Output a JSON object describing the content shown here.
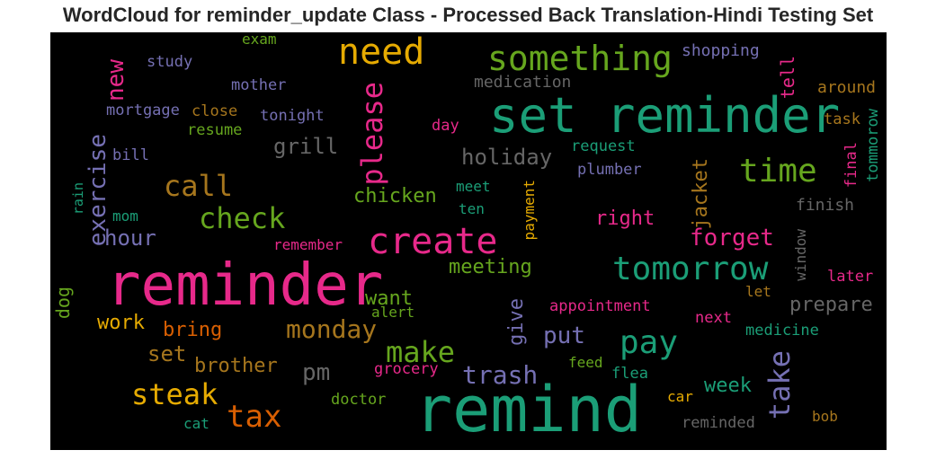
{
  "title": "WordCloud for reminder_update Class - Processed Back Translation-Hindi Testing Set",
  "colors": {
    "pink": "#e7298a",
    "teal": "#1b9e77",
    "orange": "#d95f02",
    "purple": "#7570b3",
    "green": "#66a61e",
    "gold": "#e6ab02",
    "brown": "#a6761d",
    "gray": "#666666"
  },
  "chart_data": {
    "type": "wordcloud",
    "background": "#000000",
    "words": [
      {
        "text": "reminder",
        "color": "pink"
      },
      {
        "text": "remind",
        "color": "teal"
      },
      {
        "text": "set reminder",
        "color": "teal"
      },
      {
        "text": "create",
        "color": "pink"
      },
      {
        "text": "tomorrow",
        "color": "teal"
      },
      {
        "text": "something",
        "color": "green"
      },
      {
        "text": "need",
        "color": "gold"
      },
      {
        "text": "please",
        "color": "pink"
      },
      {
        "text": "time",
        "color": "green"
      },
      {
        "text": "pay",
        "color": "teal"
      },
      {
        "text": "call",
        "color": "brown"
      },
      {
        "text": "check",
        "color": "green"
      },
      {
        "text": "make",
        "color": "green"
      },
      {
        "text": "tax",
        "color": "orange"
      },
      {
        "text": "steak",
        "color": "gold"
      },
      {
        "text": "take",
        "color": "purple"
      },
      {
        "text": "exercise",
        "color": "purple"
      },
      {
        "text": "new",
        "color": "pink"
      },
      {
        "text": "monday",
        "color": "brown"
      },
      {
        "text": "forget",
        "color": "pink"
      },
      {
        "text": "trash",
        "color": "purple"
      },
      {
        "text": "put",
        "color": "purple"
      },
      {
        "text": "holiday",
        "color": "gray"
      },
      {
        "text": "jacket",
        "color": "brown"
      },
      {
        "text": "pm",
        "color": "gray"
      },
      {
        "text": "hour",
        "color": "purple"
      },
      {
        "text": "grill",
        "color": "gray"
      },
      {
        "text": "set",
        "color": "brown"
      },
      {
        "text": "chicken",
        "color": "green"
      },
      {
        "text": "meeting",
        "color": "green"
      },
      {
        "text": "right",
        "color": "pink"
      },
      {
        "text": "prepare",
        "color": "gray"
      },
      {
        "text": "want",
        "color": "green"
      },
      {
        "text": "bring",
        "color": "orange"
      },
      {
        "text": "brother",
        "color": "brown"
      },
      {
        "text": "week",
        "color": "teal"
      },
      {
        "text": "work",
        "color": "gold"
      },
      {
        "text": "give",
        "color": "purple"
      },
      {
        "text": "tell",
        "color": "pink"
      },
      {
        "text": "dog",
        "color": "green"
      },
      {
        "text": "shopping",
        "color": "purple"
      },
      {
        "text": "medication",
        "color": "gray"
      },
      {
        "text": "around",
        "color": "brown"
      },
      {
        "text": "study",
        "color": "purple"
      },
      {
        "text": "mother",
        "color": "purple"
      },
      {
        "text": "exam",
        "color": "green"
      },
      {
        "text": "mortgage",
        "color": "purple"
      },
      {
        "text": "close",
        "color": "brown"
      },
      {
        "text": "tonight",
        "color": "purple"
      },
      {
        "text": "resume",
        "color": "green"
      },
      {
        "text": "task",
        "color": "brown"
      },
      {
        "text": "tommorow",
        "color": "teal"
      },
      {
        "text": "final",
        "color": "pink"
      },
      {
        "text": "day",
        "color": "pink"
      },
      {
        "text": "request",
        "color": "teal"
      },
      {
        "text": "plumber",
        "color": "purple"
      },
      {
        "text": "bill",
        "color": "purple"
      },
      {
        "text": "payment",
        "color": "gold"
      },
      {
        "text": "meet",
        "color": "teal"
      },
      {
        "text": "ten",
        "color": "teal"
      },
      {
        "text": "finish",
        "color": "gray"
      },
      {
        "text": "rain",
        "color": "teal"
      },
      {
        "text": "mom",
        "color": "teal"
      },
      {
        "text": "remember",
        "color": "pink"
      },
      {
        "text": "window",
        "color": "gray"
      },
      {
        "text": "later",
        "color": "pink"
      },
      {
        "text": "let",
        "color": "brown"
      },
      {
        "text": "appointment",
        "color": "pink"
      },
      {
        "text": "alert",
        "color": "green"
      },
      {
        "text": "next",
        "color": "pink"
      },
      {
        "text": "medicine",
        "color": "teal"
      },
      {
        "text": "feed",
        "color": "green"
      },
      {
        "text": "grocery",
        "color": "pink"
      },
      {
        "text": "flea",
        "color": "teal"
      },
      {
        "text": "doctor",
        "color": "green"
      },
      {
        "text": "car",
        "color": "gold"
      },
      {
        "text": "cat",
        "color": "teal"
      },
      {
        "text": "reminded",
        "color": "gray"
      },
      {
        "text": "bob",
        "color": "brown"
      }
    ]
  }
}
